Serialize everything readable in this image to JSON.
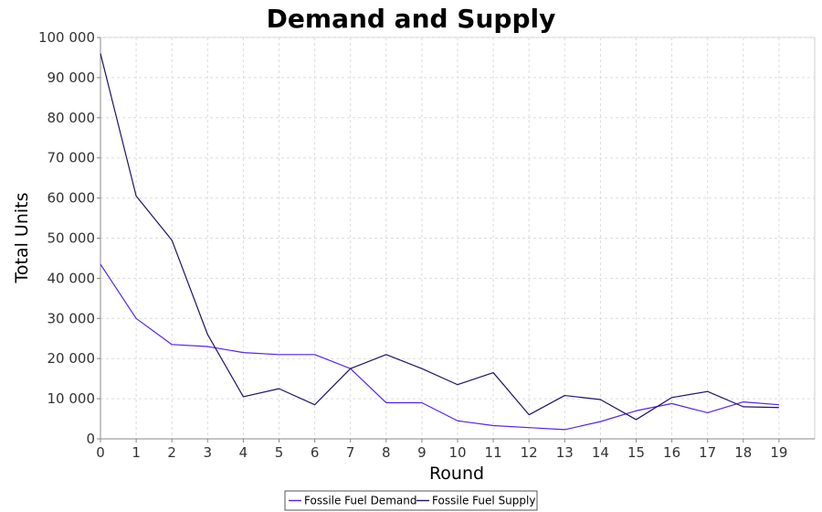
{
  "chart_data": {
    "type": "line",
    "title": "Demand and Supply",
    "xlabel": "Round",
    "ylabel": "Total Units",
    "xlim": [
      0,
      20
    ],
    "ylim": [
      0,
      100000
    ],
    "x": [
      0,
      1,
      2,
      3,
      4,
      5,
      6,
      7,
      8,
      9,
      10,
      11,
      12,
      13,
      14,
      15,
      16,
      17,
      18,
      19
    ],
    "x_tick_labels": [
      "0",
      "1",
      "2",
      "3",
      "4",
      "5",
      "6",
      "7",
      "8",
      "9",
      "10",
      "11",
      "12",
      "13",
      "14",
      "15",
      "16",
      "17",
      "18",
      "19"
    ],
    "y_ticks": [
      0,
      10000,
      20000,
      30000,
      40000,
      50000,
      60000,
      70000,
      80000,
      90000,
      100000
    ],
    "y_tick_labels": [
      "0",
      "10 000",
      "20 000",
      "30 000",
      "40 000",
      "50 000",
      "60 000",
      "70 000",
      "80 000",
      "90 000",
      "100 000"
    ],
    "grid": true,
    "legend_position": "bottom-center",
    "series": [
      {
        "name": "Fossile Fuel Demand",
        "color": "#5522ee",
        "values": [
          43500,
          30000,
          23500,
          23000,
          21500,
          21000,
          21000,
          17500,
          9000,
          9000,
          4500,
          3300,
          2800,
          2300,
          4300,
          7000,
          8800,
          6500,
          9200,
          8500
        ]
      },
      {
        "name": "Fossile Fuel Supply",
        "color": "#221166",
        "values": [
          96000,
          60500,
          49500,
          26000,
          10500,
          12500,
          8500,
          17500,
          21000,
          17500,
          13500,
          16500,
          6000,
          10800,
          9800,
          4800,
          10300,
          11800,
          8000,
          7800
        ]
      }
    ]
  }
}
